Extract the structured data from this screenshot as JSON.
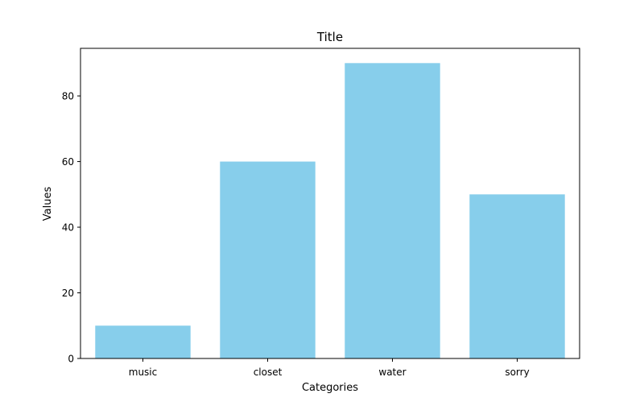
{
  "chart_data": {
    "type": "bar",
    "title": "Title",
    "xlabel": "Categories",
    "ylabel": "Values",
    "categories": [
      "music",
      "closet",
      "water",
      "sorry"
    ],
    "values": [
      10,
      60,
      90,
      50
    ],
    "ylim": [
      0,
      94.5
    ],
    "yticks": [
      0,
      20,
      40,
      60,
      80
    ],
    "bar_color": "#87ceeb",
    "grid": false,
    "legend": "none"
  }
}
